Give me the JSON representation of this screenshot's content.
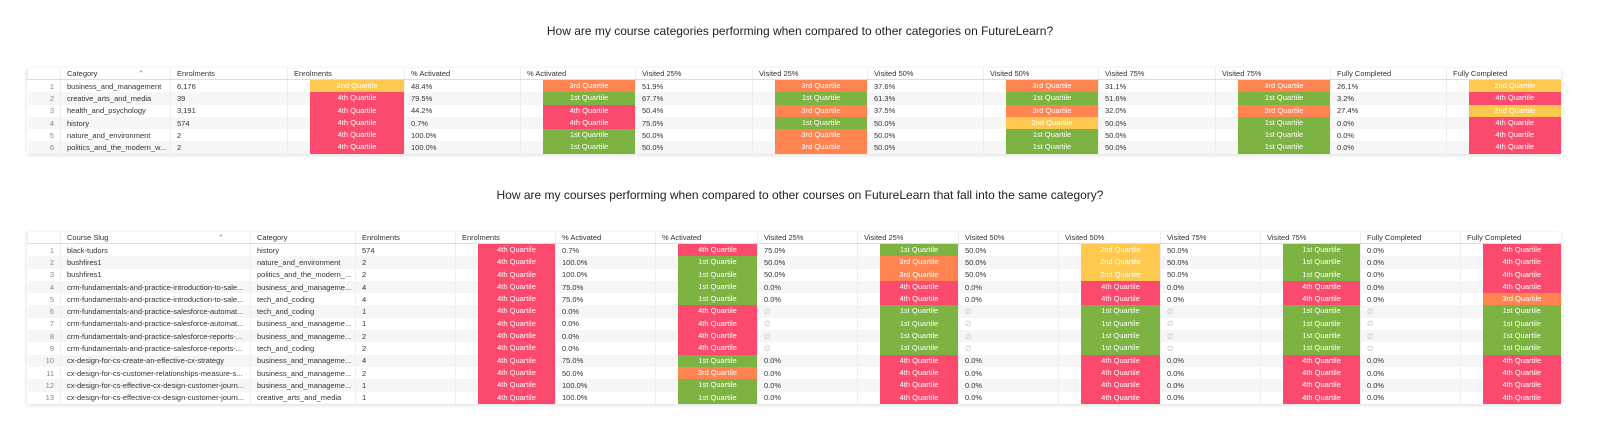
{
  "quartile_colors": {
    "1st Quartile": "#7cb342",
    "2nd Quartile": "#ffc94f",
    "3rd Quartile": "#ff8452",
    "4th Quartile": "#fb4a6e"
  },
  "section_1": {
    "title": "How are my course categories performing when compared to other categories on FutureLearn?",
    "columns": [
      "Category",
      "Enrolments",
      "Enrolments",
      "% Activated",
      "% Activated",
      "Visited 25%",
      "Visited 25%",
      "Visited 50%",
      "Visited 50%",
      "Visited 75%",
      "Visited 75%",
      "Fully Completed",
      "Fully Completed"
    ],
    "rows": [
      [
        1,
        "business_and_management",
        "6,176",
        "2nd Quartile",
        "48.4%",
        "3rd Quartile",
        "51.9%",
        "3rd Quartile",
        "37.6%",
        "3rd Quartile",
        "31.1%",
        "3rd Quartile",
        "26.1%",
        "2nd Quartile"
      ],
      [
        2,
        "creative_arts_and_media",
        "39",
        "4th Quartile",
        "79.5%",
        "1st Quartile",
        "67.7%",
        "1st Quartile",
        "61.3%",
        "1st Quartile",
        "51.6%",
        "1st Quartile",
        "3.2%",
        "4th Quartile"
      ],
      [
        3,
        "health_and_psychology",
        "3,191",
        "4th Quartile",
        "44.2%",
        "4th Quartile",
        "50.4%",
        "3rd Quartile",
        "37.5%",
        "3rd Quartile",
        "32.0%",
        "3rd Quartile",
        "27.4%",
        "2nd Quartile"
      ],
      [
        4,
        "history",
        "574",
        "4th Quartile",
        "0.7%",
        "4th Quartile",
        "75.0%",
        "1st Quartile",
        "50.0%",
        "2nd Quartile",
        "50.0%",
        "1st Quartile",
        "0.0%",
        "4th Quartile"
      ],
      [
        5,
        "nature_and_environment",
        "2",
        "4th Quartile",
        "100.0%",
        "1st Quartile",
        "50.0%",
        "3rd Quartile",
        "50.0%",
        "1st Quartile",
        "50.0%",
        "1st Quartile",
        "0.0%",
        "4th Quartile"
      ],
      [
        6,
        "politics_and_the_modern_w...",
        "2",
        "4th Quartile",
        "100.0%",
        "1st Quartile",
        "50.0%",
        "3rd Quartile",
        "50.0%",
        "1st Quartile",
        "50.0%",
        "1st Quartile",
        "0.0%",
        "4th Quartile"
      ]
    ]
  },
  "section_2": {
    "title": "How are my courses performing when compared to other courses on FutureLearn that fall into the same category?",
    "columns": [
      "Course Slug",
      "Category",
      "Enrolments",
      "Enrolments",
      "% Activated",
      "% Activated",
      "Visited 25%",
      "Visited 25%",
      "Visited 50%",
      "Visited 50%",
      "Visited 75%",
      "Visited 75%",
      "Fully Completed",
      "Fully Completed"
    ],
    "rows": [
      [
        1,
        "black-tudors",
        "history",
        "574",
        "4th Quartile",
        "0.7%",
        "4th Quartile",
        "75.0%",
        "1st Quartile",
        "50.0%",
        "2nd Quartile",
        "50.0%",
        "1st Quartile",
        "0.0%",
        "4th Quartile"
      ],
      [
        2,
        "bushfires1",
        "nature_and_environment",
        "2",
        "4th Quartile",
        "100.0%",
        "1st Quartile",
        "50.0%",
        "3rd Quartile",
        "50.0%",
        "2nd Quartile",
        "50.0%",
        "1st Quartile",
        "0.0%",
        "4th Quartile"
      ],
      [
        3,
        "bushfires1",
        "politics_and_the_modern_...",
        "2",
        "4th Quartile",
        "100.0%",
        "1st Quartile",
        "50.0%",
        "3rd Quartile",
        "50.0%",
        "2nd Quartile",
        "50.0%",
        "1st Quartile",
        "0.0%",
        "4th Quartile"
      ],
      [
        4,
        "crm-fundamentals-and-practice-introduction-to-sale...",
        "business_and_manageme...",
        "4",
        "4th Quartile",
        "75.0%",
        "1st Quartile",
        "0.0%",
        "4th Quartile",
        "0.0%",
        "4th Quartile",
        "0.0%",
        "4th Quartile",
        "0.0%",
        "4th Quartile"
      ],
      [
        5,
        "crm-fundamentals-and-practice-introduction-to-sale...",
        "tech_and_coding",
        "4",
        "4th Quartile",
        "75.0%",
        "1st Quartile",
        "0.0%",
        "4th Quartile",
        "0.0%",
        "4th Quartile",
        "0.0%",
        "4th Quartile",
        "0.0%",
        "3rd Quartile"
      ],
      [
        6,
        "crm-fundamentals-and-practice-salesforce-automat...",
        "tech_and_coding",
        "1",
        "4th Quartile",
        "0.0%",
        "4th Quartile",
        "∅",
        "1st Quartile",
        "∅",
        "1st Quartile",
        "∅",
        "1st Quartile",
        "∅",
        "1st Quartile"
      ],
      [
        7,
        "crm-fundamentals-and-practice-salesforce-automat...",
        "business_and_manageme...",
        "1",
        "4th Quartile",
        "0.0%",
        "4th Quartile",
        "∅",
        "1st Quartile",
        "∅",
        "1st Quartile",
        "∅",
        "1st Quartile",
        "∅",
        "1st Quartile"
      ],
      [
        8,
        "crm-fundamentals-and-practice-salesforce-reports-...",
        "business_and_manageme...",
        "2",
        "4th Quartile",
        "0.0%",
        "4th Quartile",
        "∅",
        "1st Quartile",
        "∅",
        "1st Quartile",
        "∅",
        "1st Quartile",
        "∅",
        "1st Quartile"
      ],
      [
        9,
        "crm-fundamentals-and-practice-salesforce-reports-...",
        "tech_and_coding",
        "2",
        "4th Quartile",
        "0.0%",
        "4th Quartile",
        "∅",
        "1st Quartile",
        "∅",
        "1st Quartile",
        "∅",
        "1st Quartile",
        "∅",
        "1st Quartile"
      ],
      [
        10,
        "cx-design-for-cs-create-an-effective-cx-strategy",
        "business_and_manageme...",
        "4",
        "4th Quartile",
        "75.0%",
        "1st Quartile",
        "0.0%",
        "4th Quartile",
        "0.0%",
        "4th Quartile",
        "0.0%",
        "4th Quartile",
        "0.0%",
        "4th Quartile"
      ],
      [
        11,
        "cx-design-for-cs-customer-relationships-measure-s...",
        "business_and_manageme...",
        "2",
        "4th Quartile",
        "50.0%",
        "3rd Quartile",
        "0.0%",
        "4th Quartile",
        "0.0%",
        "4th Quartile",
        "0.0%",
        "4th Quartile",
        "0.0%",
        "4th Quartile"
      ],
      [
        12,
        "cx-design-for-cs-effective-cx-design-customer-journ...",
        "business_and_manageme...",
        "1",
        "4th Quartile",
        "100.0%",
        "1st Quartile",
        "0.0%",
        "4th Quartile",
        "0.0%",
        "4th Quartile",
        "0.0%",
        "4th Quartile",
        "0.0%",
        "4th Quartile"
      ],
      [
        13,
        "cx-design-for-cs-effective-cx-design-customer-journ...",
        "creative_arts_and_media",
        "1",
        "4th Quartile",
        "100.0%",
        "1st Quartile",
        "0.0%",
        "4th Quartile",
        "0.0%",
        "4th Quartile",
        "0.0%",
        "4th Quartile",
        "0.0%",
        "4th Quartile"
      ]
    ]
  }
}
